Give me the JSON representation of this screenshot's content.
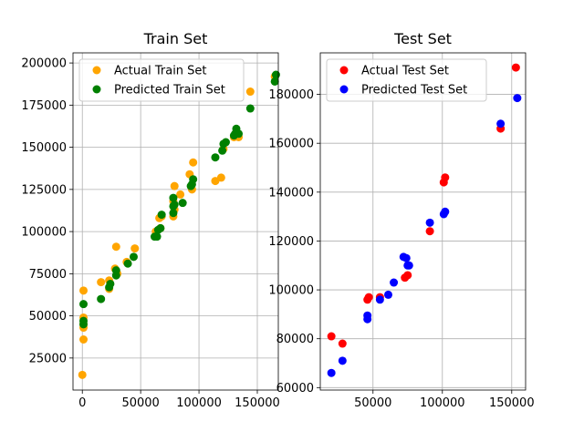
{
  "chart_data": [
    {
      "type": "scatter",
      "title": "Train Set",
      "xlabel": "",
      "ylabel": "",
      "xlim": [
        -8000,
        168000
      ],
      "ylim": [
        6000,
        206000
      ],
      "xticks": [
        {
          "value": 0,
          "label": "0"
        },
        {
          "value": 50000,
          "label": "50000"
        },
        {
          "value": 100000,
          "label": "100000"
        },
        {
          "value": 150000,
          "label": "150000"
        }
      ],
      "yticks": [
        {
          "value": 25000,
          "label": "25000"
        },
        {
          "value": 50000,
          "label": "50000"
        },
        {
          "value": 75000,
          "label": "75000"
        },
        {
          "value": 100000,
          "label": "100000"
        },
        {
          "value": 125000,
          "label": "125000"
        },
        {
          "value": 150000,
          "label": "150000"
        },
        {
          "value": 175000,
          "label": "175000"
        },
        {
          "value": 200000,
          "label": "200000"
        }
      ],
      "grid": true,
      "legend_position": "top-left",
      "series": [
        {
          "name": "Actual Train Set",
          "color": "#FFA500",
          "points": [
            [
              0,
              15000
            ],
            [
              1000,
              36000
            ],
            [
              1000,
              43000
            ],
            [
              1000,
              45000
            ],
            [
              1000,
              49000
            ],
            [
              1000,
              65000
            ],
            [
              16000,
              70000
            ],
            [
              23000,
              66000
            ],
            [
              23000,
              71000
            ],
            [
              28000,
              78000
            ],
            [
              29000,
              91000
            ],
            [
              30000,
              75000
            ],
            [
              38000,
              82000
            ],
            [
              45000,
              90000
            ],
            [
              63000,
              100000
            ],
            [
              66000,
              108000
            ],
            [
              67000,
              102000
            ],
            [
              68000,
              109000
            ],
            [
              78000,
              109000
            ],
            [
              78000,
              118000
            ],
            [
              79000,
              127000
            ],
            [
              79000,
              113000
            ],
            [
              84000,
              122000
            ],
            [
              92000,
              134000
            ],
            [
              94000,
              125000
            ],
            [
              95000,
              141000
            ],
            [
              114000,
              130000
            ],
            [
              119000,
              132000
            ],
            [
              121000,
              149000
            ],
            [
              130000,
              156000
            ],
            [
              132000,
              157000
            ],
            [
              134000,
              156000
            ],
            [
              144000,
              183000
            ],
            [
              165000,
              192000
            ]
          ]
        },
        {
          "name": "Predicted Train Set",
          "color": "#008000",
          "points": [
            [
              1000,
              45000
            ],
            [
              1000,
              47000
            ],
            [
              1000,
              57000
            ],
            [
              16000,
              60000
            ],
            [
              23000,
              67000
            ],
            [
              24000,
              69000
            ],
            [
              29000,
              74000
            ],
            [
              29000,
              77000
            ],
            [
              39000,
              81000
            ],
            [
              44000,
              85000
            ],
            [
              62000,
              97000
            ],
            [
              64000,
              97000
            ],
            [
              65000,
              101000
            ],
            [
              67000,
              102000
            ],
            [
              68000,
              110000
            ],
            [
              78000,
              111000
            ],
            [
              78000,
              115000
            ],
            [
              79000,
              116000
            ],
            [
              78000,
              120000
            ],
            [
              86000,
              117000
            ],
            [
              93000,
              127000
            ],
            [
              94000,
              128000
            ],
            [
              95000,
              131000
            ],
            [
              114000,
              144000
            ],
            [
              120000,
              148000
            ],
            [
              121000,
              152000
            ],
            [
              123000,
              153000
            ],
            [
              130000,
              157000
            ],
            [
              131000,
              158000
            ],
            [
              132000,
              161000
            ],
            [
              134000,
              158000
            ],
            [
              144000,
              173000
            ],
            [
              165000,
              189000
            ],
            [
              166000,
              193000
            ]
          ]
        }
      ]
    },
    {
      "type": "scatter",
      "title": "Test Set",
      "xlabel": "",
      "ylabel": "",
      "xlim": [
        12000,
        160000
      ],
      "ylim": [
        59000,
        197000
      ],
      "xticks": [
        {
          "value": 50000,
          "label": "50000"
        },
        {
          "value": 100000,
          "label": "100000"
        },
        {
          "value": 150000,
          "label": "150000"
        }
      ],
      "yticks": [
        {
          "value": 60000,
          "label": "60000"
        },
        {
          "value": 80000,
          "label": "80000"
        },
        {
          "value": 100000,
          "label": "100000"
        },
        {
          "value": 120000,
          "label": "120000"
        },
        {
          "value": 140000,
          "label": "140000"
        },
        {
          "value": 160000,
          "label": "160000"
        },
        {
          "value": 180000,
          "label": "180000"
        }
      ],
      "grid": true,
      "legend_position": "top-left",
      "series": [
        {
          "name": "Actual Test Set",
          "color": "#FF0000",
          "points": [
            [
              20000,
              81000
            ],
            [
              28000,
              78000
            ],
            [
              46000,
              96000
            ],
            [
              47000,
              97000
            ],
            [
              55000,
              97000
            ],
            [
              73000,
              105000
            ],
            [
              75000,
              106000
            ],
            [
              91000,
              124000
            ],
            [
              101000,
              144000
            ],
            [
              102000,
              146000
            ],
            [
              142000,
              166000
            ],
            [
              153000,
              191000
            ]
          ]
        },
        {
          "name": "Predicted Test Set",
          "color": "#0000FF",
          "points": [
            [
              20000,
              66000
            ],
            [
              28000,
              71000
            ],
            [
              46000,
              88000
            ],
            [
              46000,
              89500
            ],
            [
              55000,
              96000
            ],
            [
              61000,
              98000
            ],
            [
              65000,
              103000
            ],
            [
              72000,
              113500
            ],
            [
              74000,
              113000
            ],
            [
              75000,
              110000
            ],
            [
              76000,
              110000
            ],
            [
              91000,
              127500
            ],
            [
              101000,
              131000
            ],
            [
              102000,
              132000
            ],
            [
              142000,
              168000
            ],
            [
              154000,
              178500
            ]
          ]
        }
      ]
    }
  ]
}
